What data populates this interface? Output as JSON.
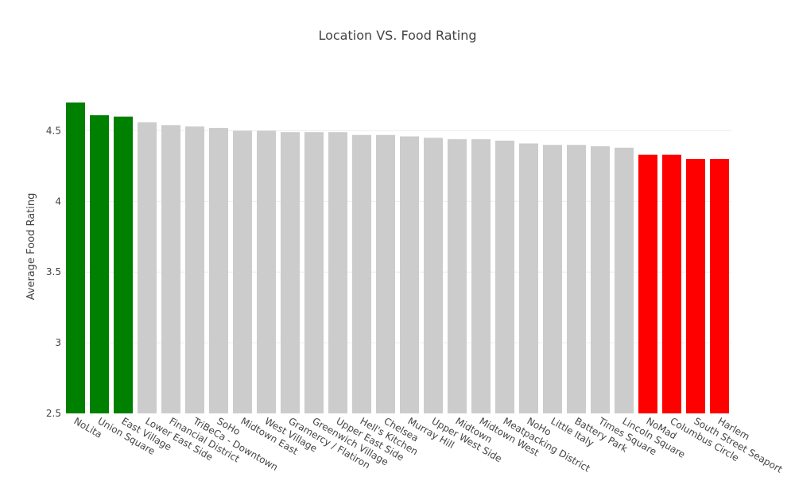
{
  "chart_data": {
    "type": "bar",
    "title": "Location VS. Food Rating",
    "xlabel": "",
    "ylabel": "Average Food Rating",
    "ylim": [
      2.5,
      4.75
    ],
    "yticks": [
      2.5,
      3,
      3.5,
      4,
      4.5
    ],
    "ytick_labels": [
      "2.5",
      "3",
      "3.5",
      "4",
      "4.5"
    ],
    "grid": true,
    "legend": "none",
    "categories": [
      "NoLita",
      "Union Square",
      "East Village",
      "Lower East Side",
      "Financial District",
      "TriBeCa - Downtown",
      "SoHo",
      "Midtown East",
      "West Village",
      "Gramercy / Flatiron",
      "Greenwich Village",
      "Upper East Side",
      "Hell's Kitchen",
      "Chelsea",
      "Murray Hill",
      "Upper West Side",
      "Midtown",
      "Midtown West",
      "Meatpacking District",
      "NoHo",
      "Little Italy",
      "Battery Park",
      "Times Square",
      "Lincoln Square",
      "NoMad",
      "Columbus Circle",
      "South Street Seaport",
      "Harlem"
    ],
    "values": [
      4.7,
      4.61,
      4.6,
      4.56,
      4.54,
      4.53,
      4.52,
      4.5,
      4.5,
      4.49,
      4.49,
      4.49,
      4.47,
      4.47,
      4.46,
      4.45,
      4.44,
      4.44,
      4.43,
      4.41,
      4.4,
      4.4,
      4.39,
      4.38,
      4.33,
      4.33,
      4.3,
      4.3
    ],
    "bar_colors": [
      "#008000",
      "#008000",
      "#008000",
      "#cccccc",
      "#cccccc",
      "#cccccc",
      "#cccccc",
      "#cccccc",
      "#cccccc",
      "#cccccc",
      "#cccccc",
      "#cccccc",
      "#cccccc",
      "#cccccc",
      "#cccccc",
      "#cccccc",
      "#cccccc",
      "#cccccc",
      "#cccccc",
      "#cccccc",
      "#cccccc",
      "#cccccc",
      "#cccccc",
      "#cccccc",
      "#ff0000",
      "#ff0000",
      "#ff0000",
      "#ff0000"
    ],
    "colors": {
      "top": "#008000",
      "middle": "#cccccc",
      "bottom": "#ff0000"
    }
  }
}
